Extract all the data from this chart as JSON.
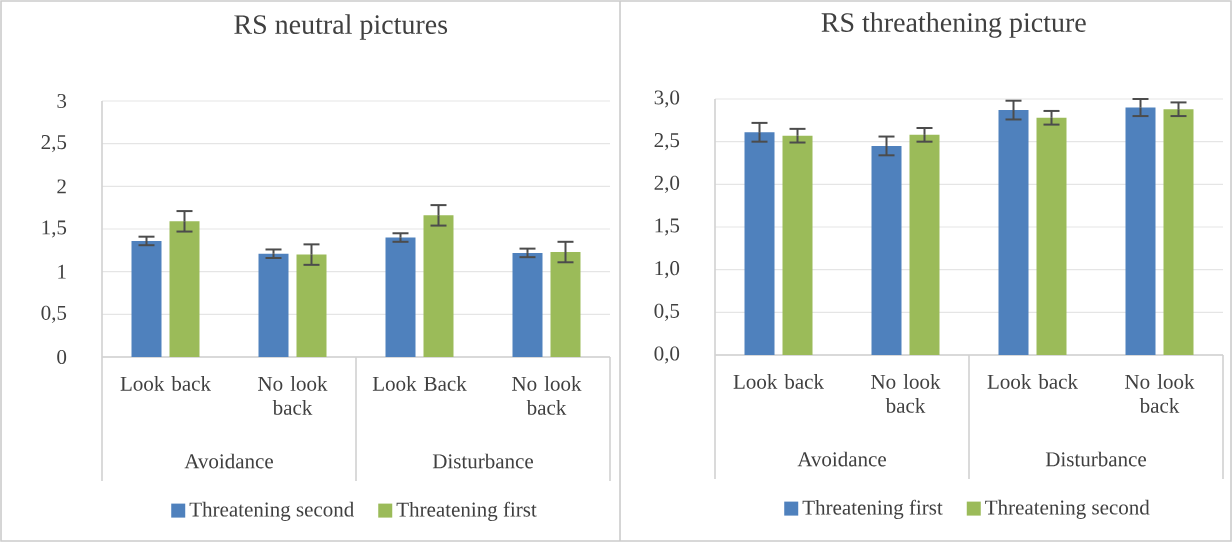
{
  "chart_data": [
    {
      "type": "bar",
      "title": "RS neutral pictures",
      "categories": [
        "Look back",
        "No look back",
        "Look Back",
        "No look back"
      ],
      "annotations": [
        "Avoidance",
        "Disturbance"
      ],
      "series": [
        {
          "name": "Threatening second",
          "color": "#4f81bd",
          "values": [
            1.36,
            1.21,
            1.4,
            1.22
          ],
          "errors": [
            0.05,
            0.05,
            0.05,
            0.05
          ]
        },
        {
          "name": "Threatening first",
          "color": "#9bbb59",
          "values": [
            1.59,
            1.2,
            1.66,
            1.23
          ],
          "errors": [
            0.12,
            0.12,
            0.12,
            0.12
          ]
        }
      ],
      "ylim": [
        0,
        3
      ],
      "yticks": [
        0,
        {
          "value": 0.5,
          "label": "0,5"
        },
        1,
        {
          "value": 1.5,
          "label": "1,5"
        },
        2,
        {
          "value": 2.5,
          "label": "2,5"
        },
        3
      ],
      "grid": "y",
      "legend": "bottom"
    },
    {
      "type": "bar",
      "title": "RS threathening picture",
      "categories": [
        "Look back",
        "No look back",
        "Look back",
        "No look back"
      ],
      "annotations": [
        "Avoidance",
        "Disturbance"
      ],
      "series": [
        {
          "name": "Threatening first",
          "color": "#4f81bd",
          "values": [
            2.61,
            2.45,
            2.87,
            2.9
          ],
          "errors": [
            0.11,
            0.11,
            0.11,
            0.1
          ]
        },
        {
          "name": "Threatening second",
          "color": "#9bbb59",
          "values": [
            2.57,
            2.58,
            2.78,
            2.88
          ],
          "errors": [
            0.08,
            0.08,
            0.08,
            0.08
          ]
        }
      ],
      "ylim": [
        0,
        3
      ],
      "yticks": [
        {
          "value": 0,
          "label": "0,0"
        },
        {
          "value": 0.5,
          "label": "0,5"
        },
        {
          "value": 1,
          "label": "1,0"
        },
        {
          "value": 1.5,
          "label": "1,5"
        },
        {
          "value": 2,
          "label": "2,0"
        },
        {
          "value": 2.5,
          "label": "2,5"
        },
        {
          "value": 3,
          "label": "3,0"
        }
      ],
      "grid": "y",
      "legend": "bottom"
    }
  ]
}
